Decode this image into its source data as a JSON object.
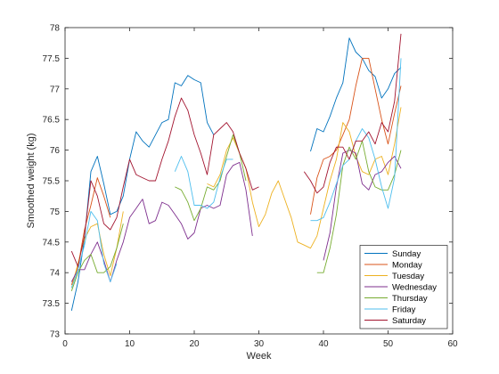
{
  "chart_data": {
    "type": "line",
    "title": "",
    "xlabel": "Week",
    "ylabel": "Smoothed weight (kg)",
    "xlim": [
      0,
      60
    ],
    "ylim": [
      73,
      78
    ],
    "xticks": [
      0,
      10,
      20,
      30,
      40,
      50,
      60
    ],
    "yticks": [
      73,
      73.5,
      74,
      74.5,
      75,
      75.5,
      76,
      76.5,
      77,
      77.5,
      78
    ],
    "xtick_labels": [
      "0",
      "10",
      "20",
      "30",
      "40",
      "50",
      "60"
    ],
    "ytick_labels": [
      "73",
      "73.5",
      "74",
      "74.5",
      "75",
      "75.5",
      "76",
      "76.5",
      "77",
      "77.5",
      "78"
    ],
    "grid": false,
    "legend_position": "bottom-right",
    "series": [
      {
        "name": "Sunday",
        "color": "#0072BD",
        "segments": [
          [
            [
              1,
              73.38
            ],
            [
              2,
              73.85
            ],
            [
              3,
              74.55
            ],
            [
              4,
              75.65
            ],
            [
              5,
              75.9
            ],
            [
              6,
              75.45
            ],
            [
              7,
              74.95
            ],
            [
              8,
              75.0
            ],
            [
              9,
              75.25
            ],
            [
              10,
              75.85
            ],
            [
              11,
              76.3
            ],
            [
              12,
              76.15
            ],
            [
              13,
              76.05
            ],
            [
              14,
              76.25
            ],
            [
              15,
              76.45
            ],
            [
              16,
              76.5
            ],
            [
              17,
              77.1
            ],
            [
              18,
              77.05
            ],
            [
              19,
              77.22
            ],
            [
              20,
              77.15
            ],
            [
              21,
              77.1
            ],
            [
              22,
              76.45
            ],
            [
              23,
              76.25
            ]
          ],
          [
            [
              38,
              75.98
            ],
            [
              39,
              76.35
            ],
            [
              40,
              76.3
            ],
            [
              41,
              76.55
            ],
            [
              42,
              76.85
            ],
            [
              43,
              77.1
            ],
            [
              44,
              77.83
            ],
            [
              45,
              77.6
            ],
            [
              46,
              77.5
            ],
            [
              47,
              77.3
            ],
            [
              48,
              77.2
            ],
            [
              49,
              76.85
            ],
            [
              50,
              77.0
            ],
            [
              51,
              77.25
            ],
            [
              52,
              77.35
            ]
          ]
        ]
      },
      {
        "name": "Monday",
        "color": "#D95319",
        "segments": [
          [
            [
              1,
              73.8
            ],
            [
              2,
              74.1
            ],
            [
              3,
              74.7
            ],
            [
              4,
              75.1
            ],
            [
              5,
              75.55
            ],
            [
              6,
              75.25
            ],
            [
              7,
              74.9
            ]
          ],
          [
            [
              38,
              74.95
            ],
            [
              39,
              75.55
            ],
            [
              40,
              75.85
            ],
            [
              41,
              75.9
            ],
            [
              42,
              76.0
            ],
            [
              43,
              76.25
            ],
            [
              44,
              76.5
            ],
            [
              45,
              77.05
            ],
            [
              46,
              77.5
            ],
            [
              47,
              77.5
            ],
            [
              48,
              77.0
            ],
            [
              49,
              76.5
            ],
            [
              50,
              76.1
            ],
            [
              51,
              76.6
            ],
            [
              52,
              77.05
            ]
          ]
        ]
      },
      {
        "name": "Tuesday",
        "color": "#EDB120",
        "segments": [
          [
            [
              1,
              73.75
            ],
            [
              2,
              74.15
            ],
            [
              3,
              74.55
            ],
            [
              4,
              74.75
            ],
            [
              5,
              74.8
            ],
            [
              6,
              74.3
            ],
            [
              7,
              73.95
            ],
            [
              8,
              74.4
            ],
            [
              9,
              75.0
            ]
          ],
          [
            [
              22,
              75.45
            ],
            [
              23,
              75.4
            ],
            [
              24,
              75.6
            ],
            [
              25,
              76.0
            ],
            [
              26,
              76.2
            ],
            [
              27,
              75.95
            ],
            [
              28,
              75.7
            ],
            [
              29,
              75.15
            ],
            [
              30,
              74.75
            ],
            [
              31,
              74.95
            ],
            [
              32,
              75.3
            ],
            [
              33,
              75.5
            ],
            [
              34,
              75.2
            ],
            [
              35,
              74.9
            ],
            [
              36,
              74.5
            ],
            [
              37,
              74.45
            ],
            [
              38,
              74.4
            ],
            [
              39,
              74.6
            ],
            [
              40,
              75.05
            ],
            [
              41,
              75.5
            ],
            [
              42,
              75.85
            ],
            [
              43,
              76.45
            ],
            [
              44,
              76.3
            ],
            [
              45,
              75.9
            ],
            [
              46,
              75.65
            ],
            [
              47,
              75.6
            ],
            [
              48,
              75.85
            ],
            [
              49,
              75.9
            ],
            [
              50,
              75.6
            ],
            [
              51,
              76.1
            ],
            [
              52,
              76.7
            ]
          ]
        ]
      },
      {
        "name": "Wednesday",
        "color": "#7E2F8E",
        "segments": [
          [
            [
              1,
              73.85
            ],
            [
              2,
              74.05
            ],
            [
              3,
              74.05
            ],
            [
              4,
              74.3
            ],
            [
              5,
              74.5
            ],
            [
              6,
              74.2
            ],
            [
              7,
              73.85
            ],
            [
              8,
              74.2
            ],
            [
              9,
              74.5
            ],
            [
              10,
              74.9
            ],
            [
              11,
              75.05
            ],
            [
              12,
              75.2
            ],
            [
              13,
              74.8
            ],
            [
              14,
              74.85
            ],
            [
              15,
              75.15
            ],
            [
              16,
              75.1
            ],
            [
              17,
              74.95
            ],
            [
              18,
              74.8
            ],
            [
              19,
              74.55
            ],
            [
              20,
              74.65
            ],
            [
              21,
              75.05
            ],
            [
              22,
              75.1
            ],
            [
              23,
              75.05
            ],
            [
              24,
              75.1
            ],
            [
              25,
              75.6
            ],
            [
              26,
              75.75
            ],
            [
              27,
              75.8
            ],
            [
              28,
              75.35
            ],
            [
              29,
              74.6
            ]
          ],
          [
            [
              40,
              74.2
            ],
            [
              41,
              74.65
            ],
            [
              42,
              75.4
            ],
            [
              43,
              75.95
            ],
            [
              44,
              76.0
            ],
            [
              45,
              75.95
            ],
            [
              46,
              75.45
            ],
            [
              47,
              75.35
            ],
            [
              48,
              75.6
            ],
            [
              49,
              75.65
            ],
            [
              50,
              75.8
            ],
            [
              51,
              75.9
            ],
            [
              52,
              75.7
            ]
          ]
        ]
      },
      {
        "name": "Thursday",
        "color": "#77AC30",
        "segments": [
          [
            [
              1,
              73.7
            ],
            [
              2,
              74.0
            ],
            [
              3,
              74.2
            ],
            [
              4,
              74.3
            ],
            [
              5,
              74.0
            ],
            [
              6,
              74.0
            ],
            [
              7,
              74.1
            ],
            [
              8,
              74.4
            ],
            [
              9,
              74.8
            ]
          ],
          [
            [
              17,
              75.4
            ],
            [
              18,
              75.35
            ],
            [
              19,
              75.15
            ],
            [
              20,
              74.85
            ],
            [
              21,
              75.05
            ],
            [
              22,
              75.4
            ],
            [
              23,
              75.35
            ],
            [
              24,
              75.5
            ],
            [
              25,
              75.9
            ],
            [
              26,
              76.25
            ],
            [
              27,
              75.95
            ],
            [
              28,
              75.5
            ]
          ],
          [
            [
              39,
              74.0
            ],
            [
              40,
              74.0
            ],
            [
              41,
              74.4
            ],
            [
              42,
              74.95
            ],
            [
              43,
              75.75
            ],
            [
              44,
              76.05
            ],
            [
              45,
              75.85
            ],
            [
              46,
              76.15
            ],
            [
              47,
              75.65
            ],
            [
              48,
              75.4
            ],
            [
              49,
              75.35
            ],
            [
              50,
              75.35
            ],
            [
              51,
              75.6
            ],
            [
              52,
              76.0
            ]
          ]
        ]
      },
      {
        "name": "Friday",
        "color": "#4DBEEE",
        "segments": [
          [
            [
              1,
              73.75
            ],
            [
              2,
              74.05
            ],
            [
              3,
              74.45
            ],
            [
              4,
              75.0
            ],
            [
              5,
              74.85
            ],
            [
              6,
              74.15
            ],
            [
              7,
              73.85
            ],
            [
              8,
              74.15
            ]
          ],
          [
            [
              17,
              75.65
            ],
            [
              18,
              75.9
            ],
            [
              19,
              75.65
            ],
            [
              20,
              75.1
            ],
            [
              21,
              75.1
            ],
            [
              22,
              75.05
            ],
            [
              23,
              75.15
            ],
            [
              24,
              75.55
            ],
            [
              25,
              75.85
            ],
            [
              26,
              75.85
            ]
          ],
          [
            [
              38,
              74.85
            ],
            [
              39,
              74.85
            ],
            [
              40,
              74.9
            ],
            [
              41,
              75.15
            ],
            [
              42,
              75.45
            ],
            [
              43,
              75.75
            ],
            [
              44,
              75.85
            ],
            [
              45,
              76.15
            ],
            [
              46,
              76.35
            ],
            [
              47,
              76.2
            ],
            [
              48,
              75.85
            ],
            [
              49,
              75.4
            ],
            [
              50,
              75.05
            ],
            [
              51,
              75.55
            ],
            [
              52,
              77.5
            ]
          ]
        ]
      },
      {
        "name": "Saturday",
        "color": "#A2142F",
        "segments": [
          [
            [
              1,
              74.35
            ],
            [
              2,
              74.1
            ],
            [
              3,
              74.6
            ],
            [
              4,
              75.5
            ],
            [
              5,
              75.25
            ],
            [
              6,
              74.8
            ],
            [
              7,
              74.7
            ],
            [
              8,
              74.9
            ],
            [
              9,
              75.4
            ],
            [
              10,
              75.85
            ],
            [
              11,
              75.6
            ],
            [
              12,
              75.55
            ],
            [
              13,
              75.5
            ],
            [
              14,
              75.5
            ],
            [
              15,
              75.85
            ],
            [
              16,
              76.15
            ],
            [
              17,
              76.55
            ],
            [
              18,
              76.85
            ],
            [
              19,
              76.65
            ],
            [
              20,
              76.25
            ],
            [
              21,
              75.95
            ],
            [
              22,
              75.6
            ],
            [
              23,
              76.25
            ],
            [
              24,
              76.35
            ],
            [
              25,
              76.45
            ],
            [
              26,
              76.3
            ],
            [
              27,
              75.95
            ],
            [
              28,
              75.7
            ],
            [
              29,
              75.35
            ],
            [
              30,
              75.4
            ]
          ],
          [
            [
              37,
              75.65
            ],
            [
              38,
              75.5
            ],
            [
              39,
              75.3
            ],
            [
              40,
              75.4
            ],
            [
              41,
              75.8
            ],
            [
              42,
              76.05
            ],
            [
              43,
              76.05
            ],
            [
              44,
              75.85
            ],
            [
              45,
              76.15
            ],
            [
              46,
              76.15
            ],
            [
              47,
              76.3
            ],
            [
              48,
              76.1
            ],
            [
              49,
              76.45
            ],
            [
              50,
              76.3
            ],
            [
              51,
              76.8
            ],
            [
              52,
              77.9
            ]
          ]
        ]
      }
    ]
  }
}
